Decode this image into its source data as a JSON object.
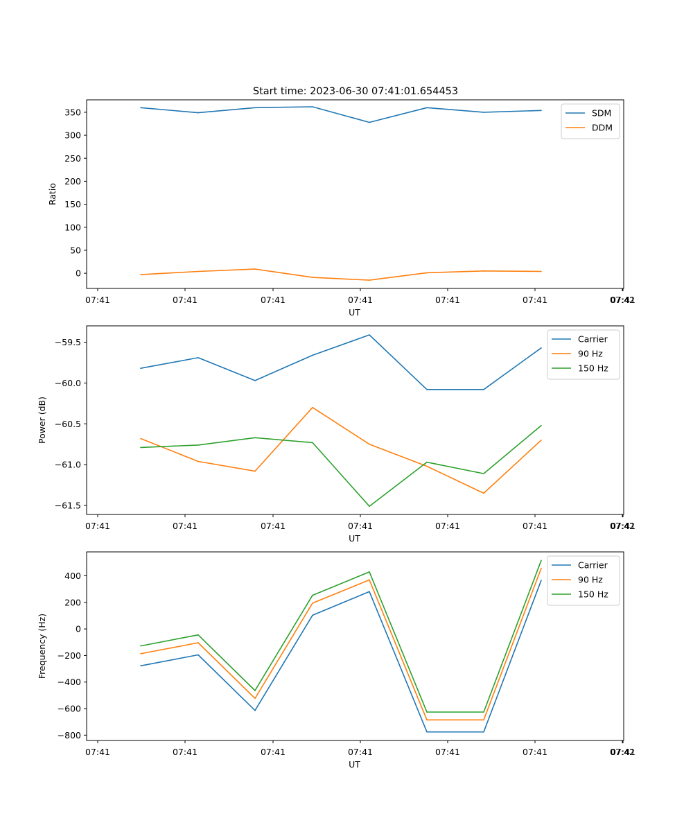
{
  "figure": {
    "title": "Start time: 2023-06-30 07:41:01.654453"
  },
  "colors": {
    "blue": "#1f77b4",
    "orange": "#ff7f0e",
    "green": "#2ca02c"
  },
  "chart_data": [
    {
      "type": "line",
      "title": "Start time: 2023-06-30 07:41:01.654453",
      "xlabel": "UT",
      "ylabel": "Ratio",
      "x_tick_labels": [
        "07:41",
        "07:41",
        "07:41",
        "07:41",
        "07:41",
        "07:41",
        "07:41"
      ],
      "x_tick_last_label": "07:42",
      "yticks": [
        0,
        50,
        100,
        150,
        200,
        250,
        300,
        350
      ],
      "ylim": [
        -33,
        377
      ],
      "legend": "top-right",
      "grid": false,
      "series": [
        {
          "name": "SDM",
          "color": "#1f77b4",
          "values": [
            360,
            349,
            360,
            362,
            328,
            360,
            350,
            354
          ]
        },
        {
          "name": "DDM",
          "color": "#ff7f0e",
          "values": [
            -3,
            4,
            9,
            -9,
            -15,
            1,
            5,
            4
          ]
        }
      ]
    },
    {
      "type": "line",
      "xlabel": "UT",
      "ylabel": "Power (dB)",
      "x_tick_labels": [
        "07:41",
        "07:41",
        "07:41",
        "07:41",
        "07:41",
        "07:41",
        "07:41"
      ],
      "x_tick_last_label": "07:42",
      "yticks": [
        -61.5,
        -61.0,
        -60.5,
        -60.0,
        -59.5
      ],
      "ytick_labels": [
        "−61.5",
        "−61.0",
        "−60.5",
        "−60.0",
        "−59.5"
      ],
      "ylim": [
        -61.61,
        -59.3
      ],
      "legend": "top-right",
      "grid": false,
      "series": [
        {
          "name": "Carrier",
          "color": "#1f77b4",
          "values": [
            -59.82,
            -59.69,
            -59.97,
            -59.66,
            -59.41,
            -60.08,
            -60.08,
            -59.57
          ]
        },
        {
          "name": "90 Hz",
          "color": "#ff7f0e",
          "values": [
            -60.68,
            -60.96,
            -61.08,
            -60.3,
            -60.75,
            -61.02,
            -61.35,
            -60.7
          ]
        },
        {
          "name": "150 Hz",
          "color": "#2ca02c",
          "values": [
            -60.79,
            -60.76,
            -60.67,
            -60.73,
            -61.51,
            -60.97,
            -61.11,
            -60.52
          ]
        }
      ]
    },
    {
      "type": "line",
      "xlabel": "UT",
      "ylabel": "Frequency (Hz)",
      "x_tick_labels": [
        "07:41",
        "07:41",
        "07:41",
        "07:41",
        "07:41",
        "07:41",
        "07:41"
      ],
      "x_tick_last_label": "07:42",
      "yticks": [
        -800,
        -600,
        -400,
        -200,
        0,
        200,
        400
      ],
      "ytick_labels": [
        "−800",
        "−600",
        "−400",
        "−200",
        "0",
        "200",
        "400"
      ],
      "ylim": [
        -840,
        580
      ],
      "legend": "top-right",
      "grid": false,
      "series": [
        {
          "name": "Carrier",
          "color": "#1f77b4",
          "values": [
            -278,
            -195,
            -614,
            103,
            281,
            -776,
            -776,
            366
          ]
        },
        {
          "name": "90 Hz",
          "color": "#ff7f0e",
          "values": [
            -187,
            -104,
            -523,
            194,
            369,
            -685,
            -685,
            457
          ]
        },
        {
          "name": "150 Hz",
          "color": "#2ca02c",
          "values": [
            -128,
            -45,
            -464,
            253,
            429,
            -626,
            -626,
            516
          ]
        }
      ]
    }
  ]
}
